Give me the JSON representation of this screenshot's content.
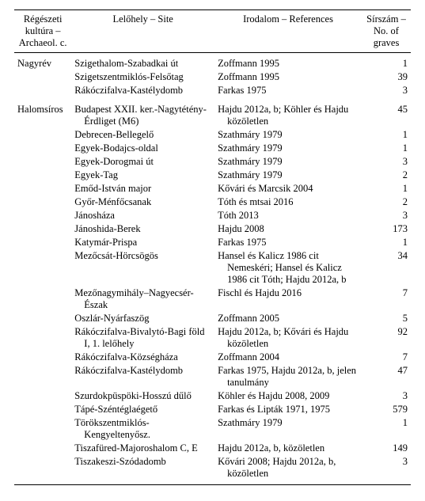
{
  "columns": {
    "c1": "Régészeti kultúra – Archaeol. c.",
    "c2": "Lelőhely – Site",
    "c3": "Irodalom – References",
    "c4": "Sírszám – No. of graves"
  },
  "groups": [
    {
      "name": "Nagyrév",
      "rows": [
        {
          "site": "Szigethalom-Szabadkai út",
          "ref": "Zoffmann 1995",
          "n": "1"
        },
        {
          "site": "Szigetszentmiklós-Felsőtag",
          "ref": "Zoffmann 1995",
          "n": "39"
        },
        {
          "site": "Rákóczifalva-Kastélydomb",
          "ref": "Farkas 1975",
          "n": "3"
        }
      ]
    },
    {
      "name": "Halomsíros",
      "rows": [
        {
          "site": "Budapest XXII. ker.-Nagytétény-Érdliget (M6)",
          "ref": "Hajdu 2012a, b; Köhler és Hajdu közöletlen",
          "n": "45"
        },
        {
          "site": "Debrecen-Bellegelő",
          "ref": "Szathmáry 1979",
          "n": "1"
        },
        {
          "site": "Egyek-Bodajcs-oldal",
          "ref": "Szathmáry 1979",
          "n": "1"
        },
        {
          "site": "Egyek-Dorogmai út",
          "ref": "Szathmáry 1979",
          "n": "3"
        },
        {
          "site": "Egyek-Tag",
          "ref": "Szathmáry 1979",
          "n": "2"
        },
        {
          "site": "Emőd-István major",
          "ref": "Kővári és Marcsik 2004",
          "n": "1"
        },
        {
          "site": "Győr-Ménfőcsanak",
          "ref": "Tóth és mtsai 2016",
          "n": "2"
        },
        {
          "site": "Jánosháza",
          "ref": "Tóth 2013",
          "n": "3"
        },
        {
          "site": "Jánoshida-Berek",
          "ref": "Hajdu 2008",
          "n": "173"
        },
        {
          "site": "Katymár-Prispa",
          "ref": "Farkas 1975",
          "n": "1"
        },
        {
          "site": "Mezőcsát-Hörcsögös",
          "ref": "Hansel és Kalicz 1986 cit Nemeskéri; Hansel és Kalicz 1986 cit Tóth; Hajdu 2012a, b",
          "n": "34"
        },
        {
          "site": "Mezőnagymihály–Nagyecsér-Észak",
          "ref": "Fischl és Hajdu 2016",
          "n": "7"
        },
        {
          "site": "Oszlár-Nyárfaszög",
          "ref": "Zoffmann 2005",
          "n": "5"
        },
        {
          "site": "Rákóczifalva-Bivalytó-Bagi föld I, 1. lelőhely",
          "ref": "Hajdu 2012a, b; Kővári és Hajdu közöletlen",
          "n": "92"
        },
        {
          "site": "Rákóczifalva-Községháza",
          "ref": "Zoffmann 2004",
          "n": "7"
        },
        {
          "site": "Rákóczifalva-Kastélydomb",
          "ref": "Farkas 1975, Hajdu 2012a, b, jelen tanulmány",
          "n": "47"
        },
        {
          "site": "Szurdokpüspöki-Hosszú dűlő",
          "ref": "Köhler és Hajdu 2008, 2009",
          "n": "3"
        },
        {
          "site": "Tápé-Széntéglaégető",
          "ref": "Farkas és Lipták 1971, 1975",
          "n": "579"
        },
        {
          "site": "Törökszentmiklós-Kengyeltenyősz.",
          "ref": "Szathmáry 1979",
          "n": "1"
        },
        {
          "site": "Tiszafüred-Majoroshalom C, E",
          "ref": "Hajdu 2012a, b, közöletlen",
          "n": "149"
        },
        {
          "site": "Tiszakeszi-Szódadomb",
          "ref": "Kővári 2008; Hajdu 2012a, b, közöletlen",
          "n": "3"
        }
      ]
    }
  ]
}
